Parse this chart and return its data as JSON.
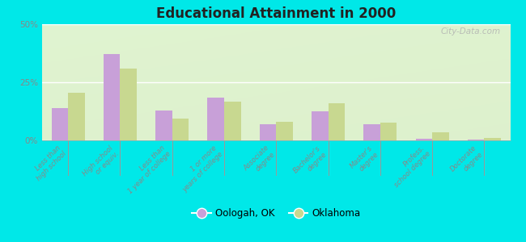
{
  "title": "Educational Attainment in 2000",
  "categories": [
    "Less than\nhigh school",
    "High school\nor equiv.",
    "Less than\n1 year of college",
    "1 or more\nyears of college",
    "Associate\ndegree",
    "Bachelor's\ndegree",
    "Master's\ndegree",
    "Profess.\nschool degree",
    "Doctorate\ndegree"
  ],
  "oologah_values": [
    14.0,
    37.0,
    13.0,
    18.5,
    7.0,
    12.5,
    7.0,
    0.8,
    0.3
  ],
  "oklahoma_values": [
    20.5,
    31.0,
    9.5,
    16.5,
    8.0,
    16.0,
    7.5,
    3.5,
    1.2
  ],
  "oologah_color": "#c8a0d8",
  "oklahoma_color": "#c8d890",
  "background_top": "#f0f8e8",
  "background_bottom": "#e0f0d0",
  "outer_background": "#00e8e8",
  "ylim": [
    0,
    50
  ],
  "yticks": [
    0,
    25,
    50
  ],
  "ytick_labels": [
    "0%",
    "25%",
    "50%"
  ],
  "bar_width": 0.32,
  "legend_oologah": "Oologah, OK",
  "legend_oklahoma": "Oklahoma",
  "watermark": "City-Data.com",
  "tick_label_color": "#888888",
  "tick_label_fontsize": 6.0
}
